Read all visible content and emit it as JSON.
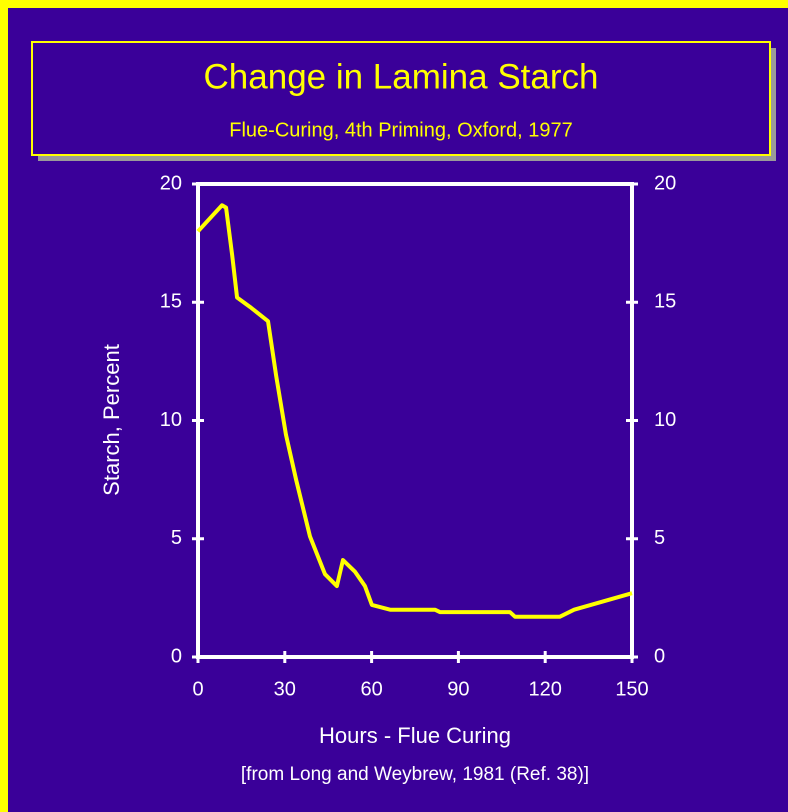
{
  "chart_data": {
    "type": "line",
    "title": "Change in Lamina Starch",
    "subtitle": "Flue-Curing, 4th Priming, Oxford, 1977",
    "x_label": "Hours - Flue Curing",
    "y_label": "Starch, Percent",
    "source": "[from Long and Weybrew, 1981 (Ref. 38)]",
    "xlim": [
      0,
      150
    ],
    "xticks": [
      0,
      30,
      60,
      90,
      120,
      150
    ],
    "ylim": [
      0,
      20
    ],
    "yticks": [
      0,
      5,
      10,
      15,
      20
    ],
    "series": [
      {
        "name": "Starch",
        "color": "#ffff00",
        "x": [
          0,
          8.3,
          9.7,
          11.8,
          13.5,
          18,
          24.2,
          27,
          30.4,
          33.9,
          38.7,
          43.9,
          48,
          50.1,
          54.3,
          57.7,
          60.1,
          66.4,
          81.9,
          83.6,
          107.8,
          109.6,
          125,
          130,
          150
        ],
        "values": [
          18.0,
          19.1,
          19.0,
          17.0,
          15.2,
          14.8,
          14.2,
          11.9,
          9.4,
          7.5,
          5.1,
          3.5,
          3.0,
          4.1,
          3.6,
          3.0,
          2.2,
          2.0,
          2.0,
          1.9,
          1.9,
          1.7,
          1.7,
          2.0,
          2.7
        ]
      }
    ]
  }
}
